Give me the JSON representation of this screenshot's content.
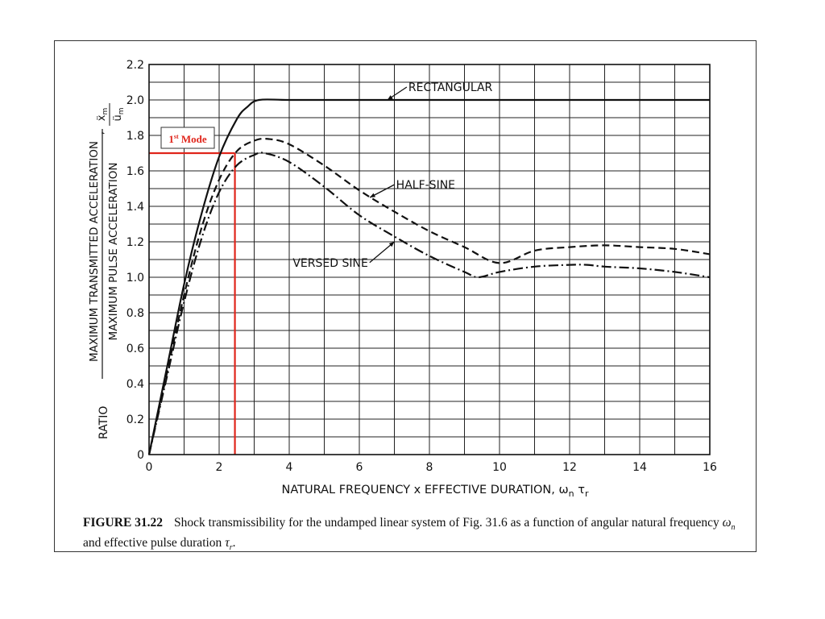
{
  "chart_data": {
    "type": "line",
    "xlabel": "NATURAL FREQUENCY x EFFECTIVE DURATION, ω",
    "xlabel_sub1": "n",
    "xlabel_tau": "τ",
    "xlabel_sub2": "r",
    "ylabel_ratio": "RATIO",
    "ylabel_numerator": "MAXIMUM TRANSMITTED ACCELERATION",
    "ylabel_denominator": "MAXIMUM PULSE ACCELERATION",
    "ylabel_num_symbol": "ẍ",
    "ylabel_num_sub": "m",
    "ylabel_den_symbol": "ü",
    "ylabel_den_sub": "m",
    "xlim": [
      0,
      16
    ],
    "ylim": [
      0,
      2.2
    ],
    "x_ticks": [
      "0",
      "2",
      "4",
      "6",
      "8",
      "10",
      "12",
      "14",
      "16"
    ],
    "y_ticks": [
      "0",
      "0.2",
      "0.4",
      "0.6",
      "0.8",
      "1.0",
      "1.2",
      "1.4",
      "1.6",
      "1.8",
      "2.0",
      "2.2"
    ],
    "grid": true,
    "series": [
      {
        "name": "RECTANGULAR",
        "style": "solid",
        "x": [
          0,
          0.5,
          1,
          1.5,
          2,
          2.5,
          2.8,
          3.14,
          4,
          6,
          8,
          10,
          12,
          14,
          16
        ],
        "y": [
          0,
          0.48,
          0.96,
          1.36,
          1.68,
          1.89,
          1.96,
          2.0,
          2.0,
          2.0,
          2.0,
          2.0,
          2.0,
          2.0,
          2.0
        ]
      },
      {
        "name": "HALF-SINE",
        "style": "dashed",
        "x": [
          0,
          0.5,
          1,
          1.5,
          2,
          2.5,
          3,
          3.4,
          4,
          5,
          6,
          7,
          8,
          9,
          10,
          11,
          12,
          13,
          14,
          15,
          16
        ],
        "y": [
          0,
          0.45,
          0.9,
          1.28,
          1.55,
          1.71,
          1.77,
          1.78,
          1.75,
          1.63,
          1.49,
          1.37,
          1.26,
          1.17,
          1.08,
          1.15,
          1.17,
          1.18,
          1.17,
          1.16,
          1.13
        ]
      },
      {
        "name": "VERSED SINE",
        "style": "dashdot",
        "x": [
          0,
          0.5,
          1,
          1.5,
          2,
          2.5,
          3,
          3.3,
          4,
          5,
          6,
          7,
          8,
          9,
          9.4,
          10,
          11,
          12,
          12.5,
          13,
          14,
          15,
          16
        ],
        "y": [
          0,
          0.43,
          0.86,
          1.22,
          1.48,
          1.63,
          1.69,
          1.7,
          1.65,
          1.51,
          1.35,
          1.23,
          1.12,
          1.03,
          1.0,
          1.03,
          1.06,
          1.07,
          1.07,
          1.06,
          1.05,
          1.03,
          1.0
        ]
      }
    ],
    "series_labels": [
      {
        "text": "RECTANGULAR",
        "x": 7.4,
        "y": 2.05,
        "arrow_to": [
          6.8,
          2.0
        ]
      },
      {
        "text": "HALF-SINE",
        "x": 7.05,
        "y": 1.5,
        "arrow_to": [
          6.3,
          1.45
        ]
      },
      {
        "text": "VERSED SINE",
        "x": 4.1,
        "y": 1.06,
        "arrow_to": [
          7.0,
          1.2
        ]
      }
    ],
    "annotation": {
      "text": "1st Mode",
      "text_main": "1",
      "text_sup": "st",
      "text_rest": " Mode",
      "color": "#e0251b",
      "h_line_y": 1.7,
      "v_line_x": 2.45
    }
  },
  "caption": {
    "label": "FIGURE 31.22",
    "text_1": "Shock transmissibility for the undamped linear system of Fig. 31.6 as a function of angular natural frequency ",
    "omega": "ω",
    "omega_sub": "n",
    "text_2": " and effective pulse duration ",
    "tau": "τ",
    "tau_sub": "r",
    "text_3": "."
  }
}
